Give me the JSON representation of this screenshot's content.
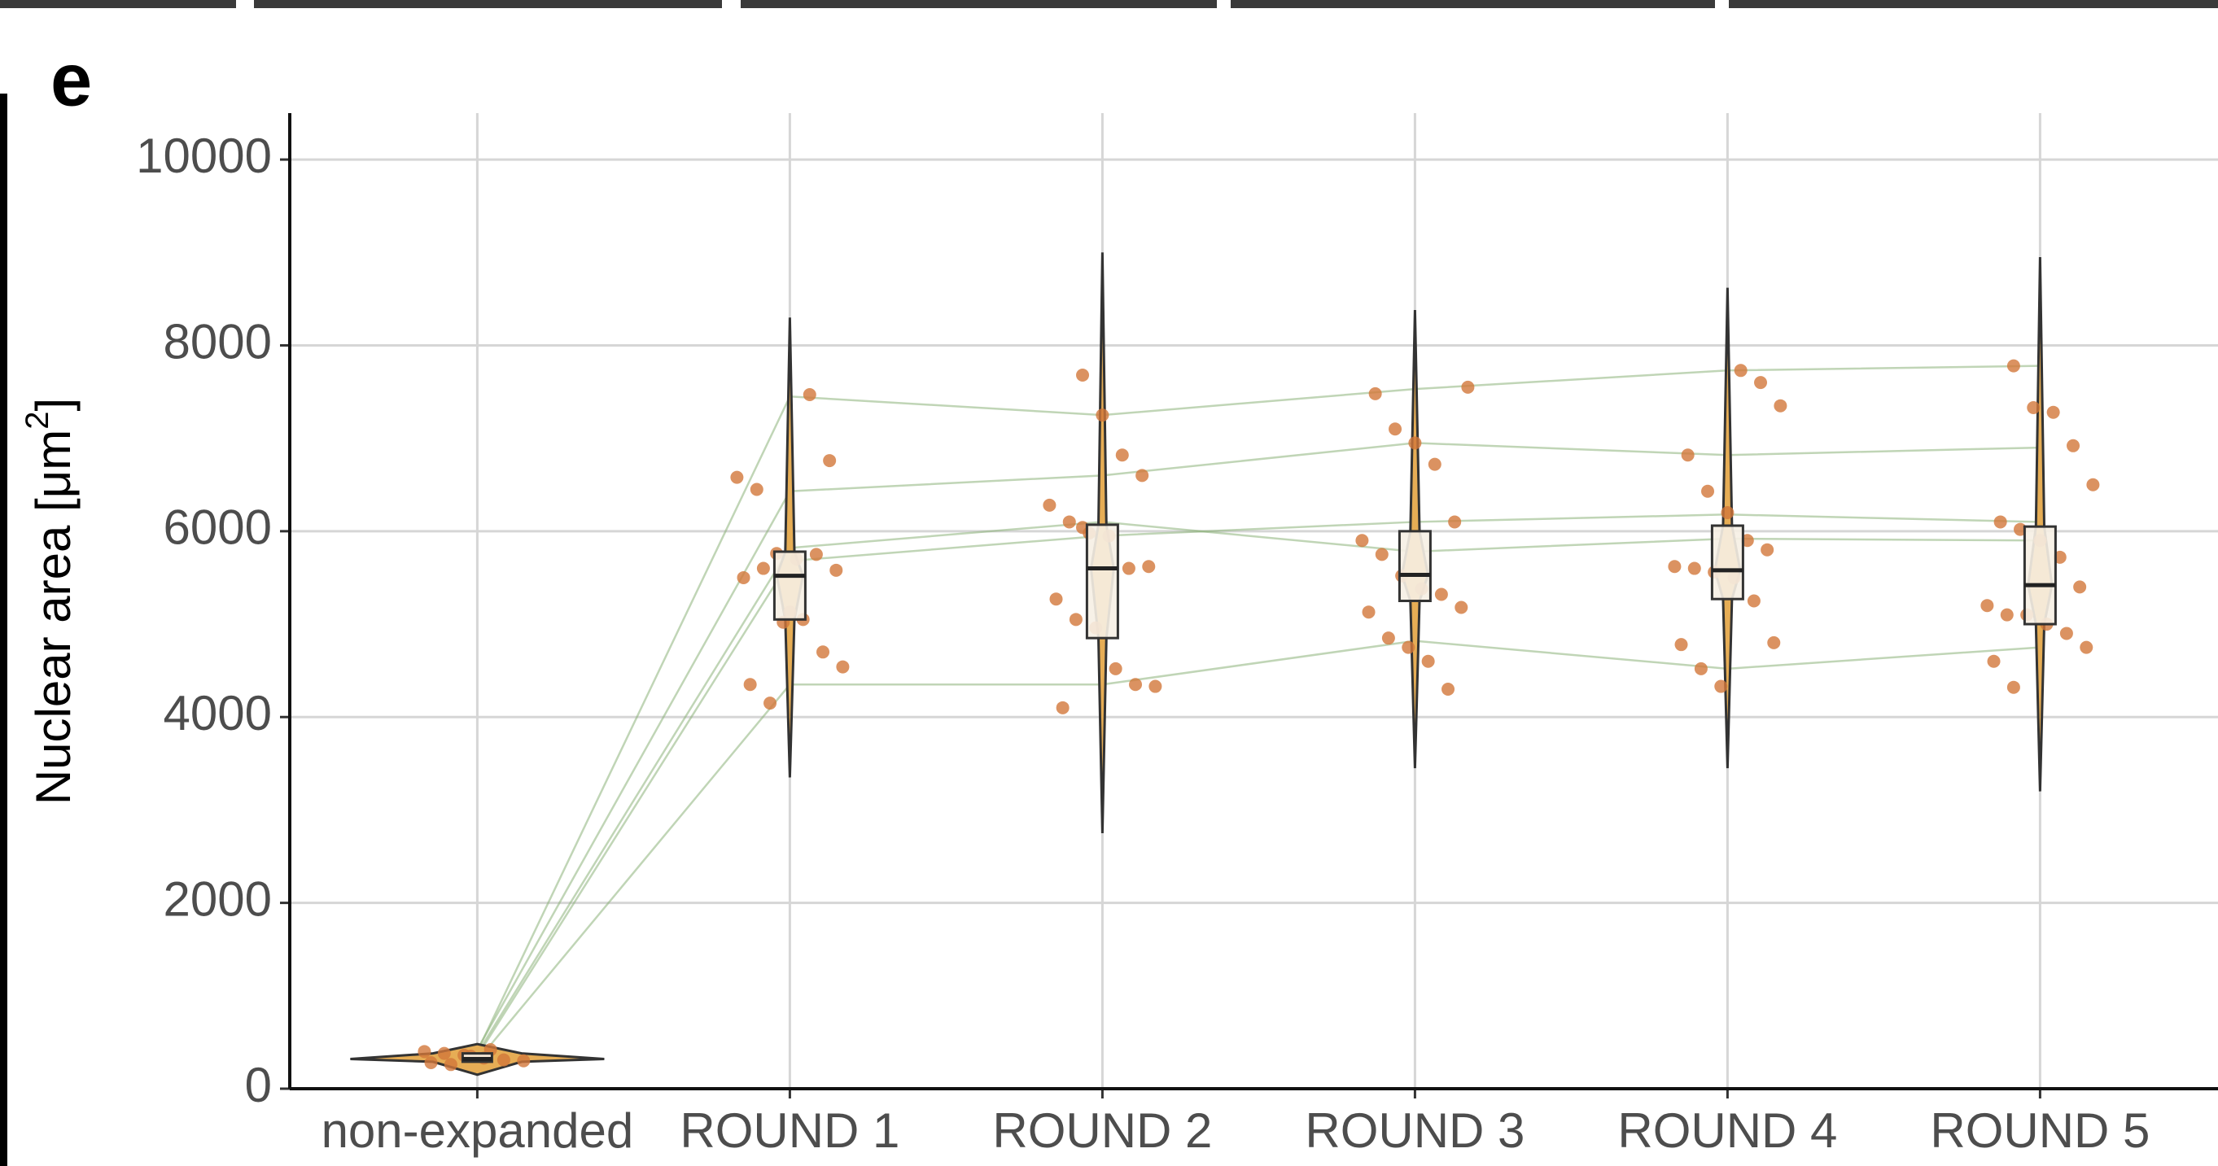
{
  "chart_data": {
    "type": "violin",
    "panel_label": "e",
    "ylabel": [
      "Nuclear area [μm",
      "2",
      "]"
    ],
    "categories": [
      "non-expanded",
      "ROUND 1",
      "ROUND 2",
      "ROUND 3",
      "ROUND 4",
      "ROUND 5"
    ],
    "ylim": [
      0,
      10500
    ],
    "yticks": [
      0,
      2000,
      4000,
      6000,
      8000,
      10000
    ],
    "grid": true,
    "violin_color": "#e6ad55",
    "box_color": "#f6f0e4",
    "point_color": "#d2773a",
    "line_color": "#8db37a",
    "groups": [
      {
        "min": 150,
        "q1": 290,
        "median": 320,
        "q3": 380,
        "max": 480,
        "points": [
          400,
          380,
          360,
          330,
          310,
          300,
          280,
          260,
          350,
          420
        ]
      },
      {
        "min": 3350,
        "q1": 5050,
        "median": 5520,
        "q3": 5780,
        "max": 8300,
        "points": [
          7470,
          6760,
          6580,
          6450,
          5760,
          5700,
          5750,
          5580,
          5500,
          5600,
          5020,
          5050,
          4700,
          4540,
          4350,
          4150,
          5130
        ]
      },
      {
        "min": 2750,
        "q1": 4850,
        "median": 5600,
        "q3": 6070,
        "max": 9000,
        "points": [
          7680,
          7250,
          6820,
          6600,
          6280,
          6100,
          5980,
          5950,
          5600,
          5620,
          5270,
          5050,
          4960,
          4520,
          4350,
          4330,
          4100,
          6040
        ]
      },
      {
        "min": 3450,
        "q1": 5250,
        "median": 5530,
        "q3": 6000,
        "max": 8380,
        "points": [
          7550,
          7480,
          7100,
          6950,
          6720,
          6100,
          5900,
          5750,
          5520,
          5380,
          5320,
          5180,
          5130,
          4850,
          4750,
          4600,
          4300
        ]
      },
      {
        "min": 3450,
        "q1": 5270,
        "median": 5580,
        "q3": 6060,
        "max": 8620,
        "points": [
          7730,
          7600,
          7350,
          6820,
          6430,
          6200,
          5900,
          5800,
          5620,
          5600,
          5560,
          5500,
          5250,
          4800,
          4780,
          4520,
          4330
        ]
      },
      {
        "min": 3200,
        "q1": 5000,
        "median": 5420,
        "q3": 6050,
        "max": 8950,
        "points": [
          7780,
          7330,
          7280,
          6920,
          6500,
          6100,
          6020,
          5900,
          5720,
          5400,
          5200,
          5100,
          5100,
          5000,
          4900,
          4750,
          4600,
          4320
        ]
      }
    ],
    "paired_lines": [
      [
        400,
        7450,
        7250,
        7530,
        7730,
        7780
      ],
      [
        420,
        6430,
        6600,
        6950,
        6820,
        6900
      ],
      [
        380,
        5820,
        6100,
        5780,
        5920,
        5900
      ],
      [
        350,
        5680,
        5950,
        6100,
        6180,
        6100
      ],
      [
        300,
        4350,
        4350,
        4820,
        4520,
        4750
      ]
    ]
  }
}
